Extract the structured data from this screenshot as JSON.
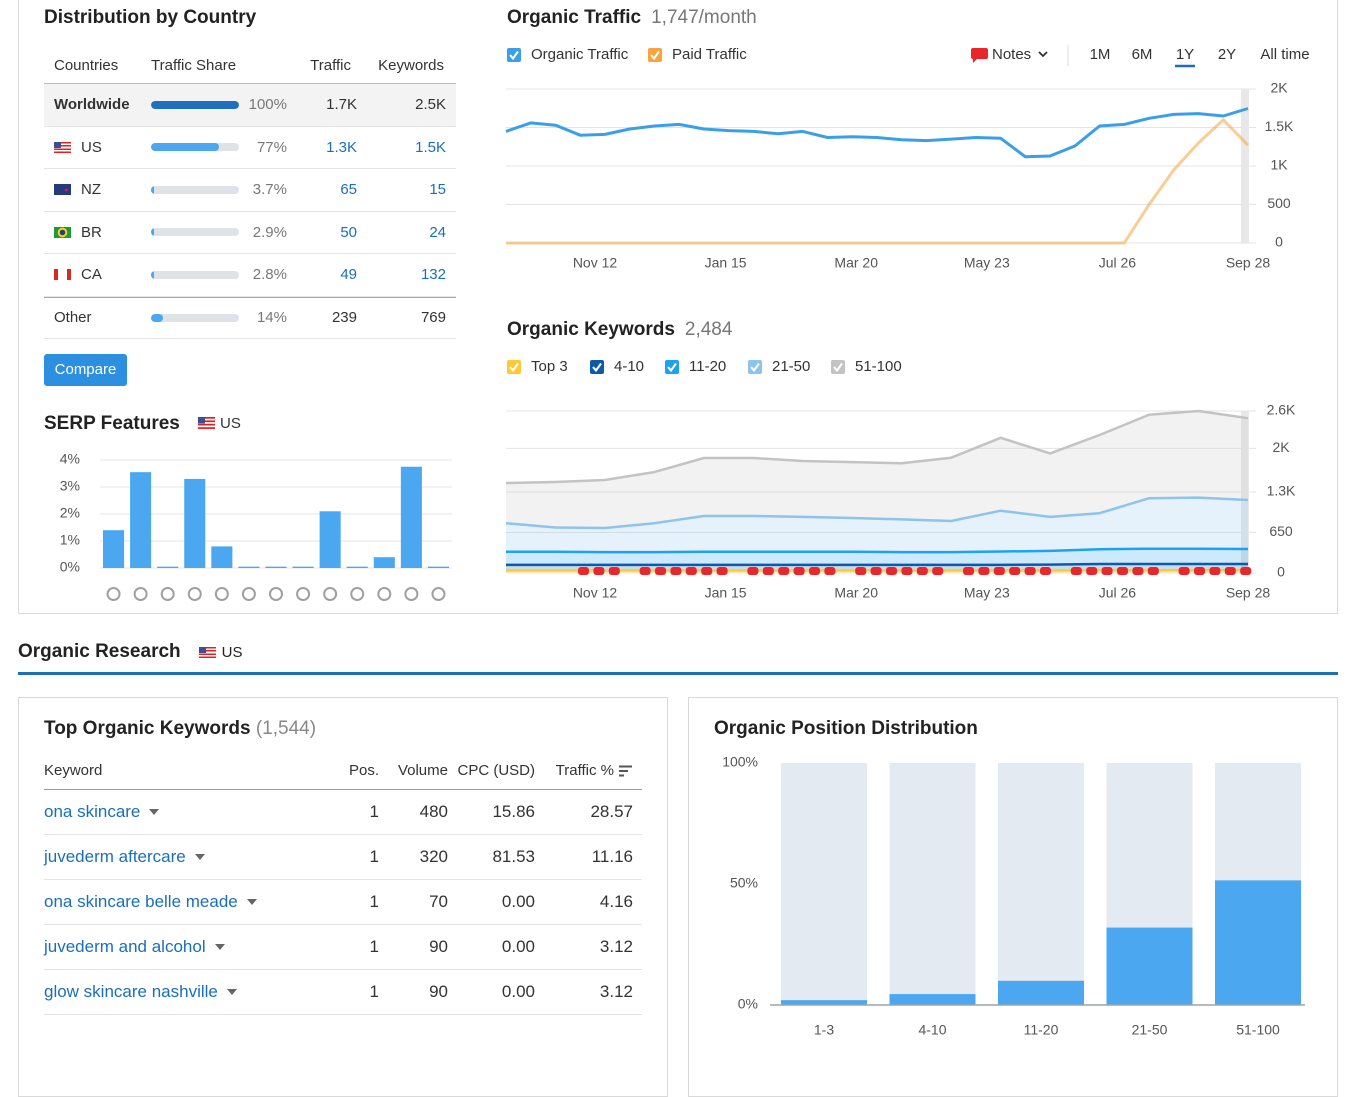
{
  "distribution": {
    "title": "Distribution by Country",
    "columns": [
      "Countries",
      "Traffic Share",
      "Traffic",
      "Keywords"
    ],
    "rows": [
      {
        "country": "Worldwide",
        "share": 100,
        "share_label": "100%",
        "traffic": "1.7K",
        "keywords": "2.5K"
      },
      {
        "country": "US",
        "share": 77,
        "share_label": "77%",
        "traffic": "1.3K",
        "keywords": "1.5K"
      },
      {
        "country": "NZ",
        "share": 3.7,
        "share_label": "3.7%",
        "traffic": "65",
        "keywords": "15"
      },
      {
        "country": "BR",
        "share": 2.9,
        "share_label": "2.9%",
        "traffic": "50",
        "keywords": "24"
      },
      {
        "country": "CA",
        "share": 2.8,
        "share_label": "2.8%",
        "traffic": "49",
        "keywords": "132"
      },
      {
        "country": "Other",
        "share": 14,
        "share_label": "14%",
        "traffic": "239",
        "keywords": "769"
      }
    ],
    "button": "Compare"
  },
  "organic_research": {
    "title": "Organic Research",
    "database": "US"
  },
  "top_keywords": {
    "title": "Top Organic Keywords",
    "count": "(1,544)",
    "columns": [
      "Keyword",
      "Pos.",
      "Volume",
      "CPC (USD)",
      "Traffic %"
    ],
    "rows": [
      [
        "ona skincare",
        "1",
        "480",
        "15.86",
        "28.57"
      ],
      [
        "juvederm aftercare",
        "1",
        "320",
        "81.53",
        "11.16"
      ],
      [
        "ona skincare belle meade",
        "1",
        "70",
        "0.00",
        "4.16"
      ],
      [
        "juvederm and alcohol",
        "1",
        "90",
        "0.00",
        "3.12"
      ],
      [
        "glow skincare nashville",
        "1",
        "90",
        "0.00",
        "3.12"
      ]
    ]
  },
  "chart_data": [
    {
      "type": "bar",
      "title": "SERP Features",
      "database": "US",
      "categories": [
        null,
        null,
        null,
        null,
        null,
        null,
        null,
        null,
        null,
        null,
        null,
        null,
        null
      ],
      "values": [
        1.4,
        3.55,
        0.05,
        3.3,
        0.8,
        0.05,
        0.05,
        0.05,
        2.1,
        0.05,
        0.4,
        3.75,
        0.05
      ],
      "color": "#4ba8f0",
      "ylim": [
        0,
        4
      ],
      "yticks": [
        {
          "value": 0,
          "label": "0%"
        },
        {
          "value": 1,
          "label": "1%"
        },
        {
          "value": 2,
          "label": "2%"
        },
        {
          "value": 3,
          "label": "3%"
        },
        {
          "value": 4,
          "label": "4%"
        }
      ],
      "grid": true
    },
    {
      "type": "line",
      "title": "Organic Traffic",
      "subtitle": "1,747/month",
      "controls": {
        "notes": "Notes",
        "periods": [
          "1M",
          "6M",
          "1Y",
          "2Y",
          "All time"
        ],
        "selected_period": "1Y"
      },
      "x_labels": [
        "Nov 12",
        "Jan 15",
        "Mar 20",
        "May 23",
        "Jul 26",
        "Sep 28"
      ],
      "ylim": [
        0,
        2000
      ],
      "yticks": [
        0,
        500,
        {
          "value": 1000,
          "label": "1K"
        },
        {
          "value": 1500,
          "label": "1.5K"
        },
        {
          "value": 2000,
          "label": "2K"
        }
      ],
      "grid": true,
      "series": [
        {
          "name": "Organic Traffic",
          "color": "#3b9fe8",
          "values": [
            1450,
            1560,
            1530,
            1400,
            1410,
            1480,
            1520,
            1540,
            1480,
            1460,
            1450,
            1420,
            1450,
            1370,
            1380,
            1370,
            1340,
            1330,
            1350,
            1370,
            1360,
            1120,
            1130,
            1260,
            1520,
            1540,
            1620,
            1670,
            1680,
            1650,
            1747
          ]
        },
        {
          "name": "Paid Traffic",
          "color": "#f7a33f",
          "values": [
            0,
            0,
            0,
            0,
            0,
            0,
            0,
            0,
            0,
            0,
            0,
            0,
            0,
            0,
            0,
            0,
            0,
            0,
            0,
            0,
            0,
            0,
            0,
            0,
            0,
            0,
            500,
            950,
            1300,
            1600,
            1270
          ]
        }
      ]
    },
    {
      "type": "stacked_area",
      "title": "Organic Keywords",
      "subtitle": "2,484",
      "x_labels": [
        "Nov 12",
        "Jan 15",
        "Mar 20",
        "May 23",
        "Jul 26",
        "Sep 28"
      ],
      "ylim": [
        0,
        2600
      ],
      "yticks": [
        0,
        650,
        {
          "value": 1300,
          "label": "1.3K"
        },
        {
          "value": 2000,
          "label": "2K"
        },
        {
          "value": 2600,
          "label": "2.6K"
        }
      ],
      "grid": true,
      "series": [
        {
          "name": "Top 3",
          "color": "#ffc933",
          "values": [
            40,
            40,
            40,
            40,
            40,
            40,
            40,
            40,
            40,
            40,
            40,
            40,
            45,
            45,
            45,
            45
          ]
        },
        {
          "name": "4-10",
          "color": "#0d5ba8",
          "values": [
            90,
            90,
            90,
            90,
            90,
            90,
            90,
            90,
            90,
            90,
            90,
            95,
            100,
            100,
            100,
            100
          ]
        },
        {
          "name": "11-20",
          "color": "#1da1f2",
          "values": [
            210,
            210,
            205,
            205,
            210,
            210,
            210,
            210,
            205,
            205,
            215,
            220,
            235,
            245,
            245,
            240
          ]
        },
        {
          "name": "21-50",
          "color": "#8dc3ec",
          "values": [
            460,
            390,
            387,
            465,
            575,
            575,
            560,
            543,
            525,
            500,
            655,
            545,
            580,
            810,
            820,
            787
          ]
        },
        {
          "name": "51-100",
          "color": "#c3c3c3",
          "values": [
            644,
            730,
            771,
            820,
            931,
            931,
            898,
            897,
            900,
            1015,
            1170,
            1020,
            1255,
            1340,
            1390,
            1312
          ]
        }
      ]
    },
    {
      "type": "bar",
      "title": "Organic Position Distribution",
      "categories": [
        "1-3",
        "4-10",
        "11-20",
        "21-50",
        "51-100"
      ],
      "values": [
        2,
        4.5,
        10,
        32,
        51.5
      ],
      "color": "#4ba8f0",
      "background": "#e4eaf1",
      "ylim": [
        0,
        100
      ],
      "yticks": [
        {
          "value": 0,
          "label": "0%"
        },
        {
          "value": 50,
          "label": "50%"
        },
        {
          "value": 100,
          "label": "100%"
        }
      ],
      "grid": false
    }
  ]
}
